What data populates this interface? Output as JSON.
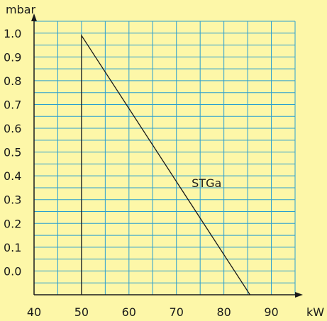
{
  "colors": {
    "background": "#fdf7a8",
    "grid": "#2b9fd0",
    "axis": "#1a1a1a",
    "curve": "#1a1a1a"
  },
  "chart_data": {
    "type": "line",
    "title": "",
    "xlabel": "kW",
    "ylabel": "mbar",
    "xlim": [
      40,
      95
    ],
    "ylim": [
      -0.1,
      1.05
    ],
    "x_ticks": [
      40,
      50,
      60,
      70,
      80,
      90
    ],
    "x_tick_labels": [
      "40",
      "50",
      "60",
      "70",
      "80",
      "90"
    ],
    "y_ticks": [
      0.0,
      0.1,
      0.2,
      0.3,
      0.4,
      0.5,
      0.6,
      0.7,
      0.8,
      0.9,
      1.0
    ],
    "y_tick_labels": [
      "0.0",
      "0.1",
      "0.2",
      "0.3",
      "0.4",
      "0.5",
      "0.6",
      "0.7",
      "0.8",
      "0.9",
      "1.0"
    ],
    "grid": true,
    "series": [
      {
        "name": "STGa",
        "x": [
          50,
          50,
          85.5
        ],
        "y": [
          -0.1,
          0.99,
          -0.1
        ]
      }
    ],
    "annotations": [
      {
        "text": "STGa",
        "x": 73.5,
        "y": 0.37
      }
    ]
  }
}
